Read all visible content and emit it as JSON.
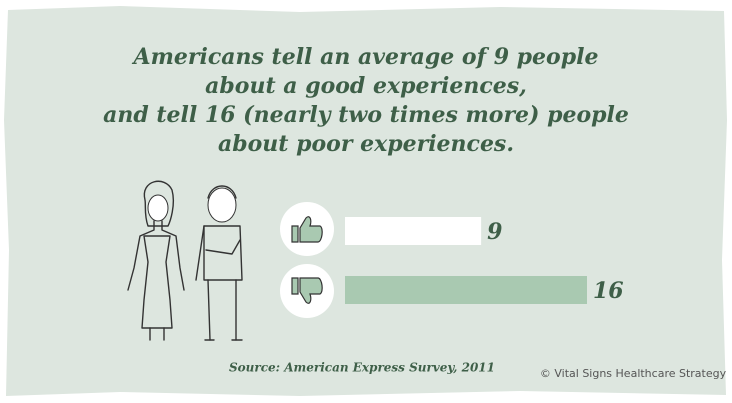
{
  "chart_data": {
    "type": "bar",
    "title": [
      "Americans tell an average of 9 people",
      "about a good experiences,",
      "and tell 16 (nearly two times more) people",
      "about poor experiences."
    ],
    "categories": [
      null,
      null
    ],
    "values": [
      9,
      16
    ],
    "colors": [
      "#ffffff",
      "#a9c9b1"
    ],
    "source": "Source: American Express Survey, 2011",
    "credit": "© Vital Signs Healthcare Strategy"
  }
}
